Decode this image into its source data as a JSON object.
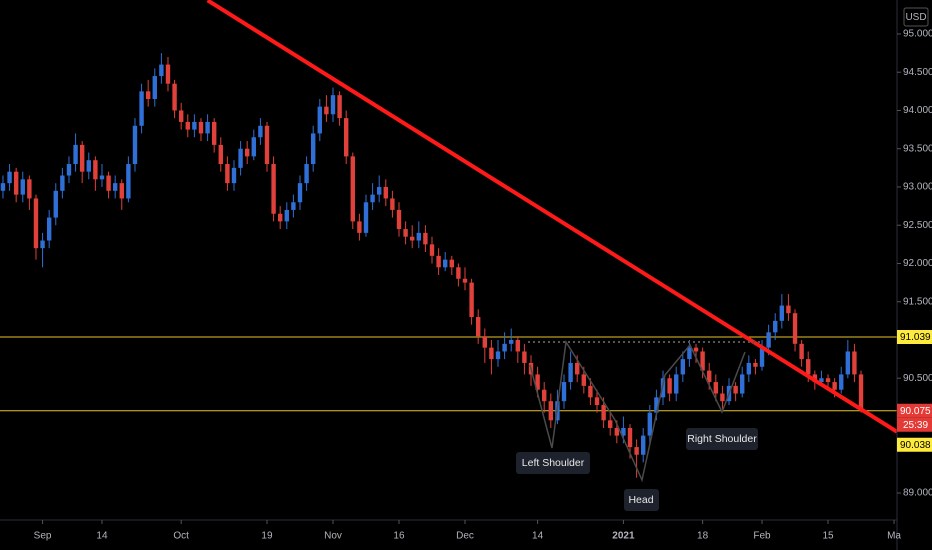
{
  "chart_data": {
    "type": "candlestick",
    "currency": "USD",
    "up_color": "#2f6fd6",
    "down_color": "#e0413a",
    "xlim": [
      -0.45,
      135.45
    ],
    "ylim": [
      88.647,
      95.444
    ],
    "xticks": [
      {
        "value": 6,
        "label": "Sep"
      },
      {
        "value": 15,
        "label": "14"
      },
      {
        "value": 27,
        "label": "Oct"
      },
      {
        "value": 40,
        "label": "19"
      },
      {
        "value": 50,
        "label": "Nov"
      },
      {
        "value": 60,
        "label": "16"
      },
      {
        "value": 70,
        "label": "Dec"
      },
      {
        "value": 81,
        "label": "14"
      },
      {
        "value": 94,
        "label": "2021"
      },
      {
        "value": 106,
        "label": "18"
      },
      {
        "value": 115,
        "label": "Feb"
      },
      {
        "value": 125,
        "label": "15"
      },
      {
        "value": 135,
        "label": "Ma"
      }
    ],
    "yticks": [
      {
        "value": 95,
        "label": "95.000"
      },
      {
        "value": 94.5,
        "label": "94.500"
      },
      {
        "value": 94,
        "label": "94.000"
      },
      {
        "value": 93.5,
        "label": "93.500"
      },
      {
        "value": 93,
        "label": "93.000"
      },
      {
        "value": 92.5,
        "label": "92.500"
      },
      {
        "value": 92,
        "label": "92.000"
      },
      {
        "value": 91.5,
        "label": "91.500"
      },
      {
        "value": 90.5,
        "label": "90.500"
      },
      {
        "value": 89,
        "label": "89.000"
      }
    ],
    "candles": [
      [
        92.95,
        93.15,
        92.85,
        93.05
      ],
      [
        93.05,
        93.3,
        92.95,
        93.2
      ],
      [
        93.2,
        93.25,
        92.8,
        92.9
      ],
      [
        92.9,
        93.2,
        92.8,
        93.1
      ],
      [
        93.1,
        93.15,
        92.7,
        92.85
      ],
      [
        92.85,
        92.9,
        92.05,
        92.2
      ],
      [
        92.2,
        92.4,
        91.95,
        92.3
      ],
      [
        92.3,
        92.7,
        92.2,
        92.6
      ],
      [
        92.6,
        93.05,
        92.5,
        92.95
      ],
      [
        92.95,
        93.25,
        92.85,
        93.15
      ],
      [
        93.15,
        93.4,
        93.05,
        93.3
      ],
      [
        93.3,
        93.7,
        93.2,
        93.55
      ],
      [
        93.55,
        93.6,
        93.05,
        93.2
      ],
      [
        93.2,
        93.45,
        93.1,
        93.35
      ],
      [
        93.35,
        93.4,
        92.95,
        93.1
      ],
      [
        93.1,
        93.3,
        93.0,
        93.15
      ],
      [
        93.15,
        93.2,
        92.85,
        92.95
      ],
      [
        92.95,
        93.15,
        92.85,
        93.05
      ],
      [
        93.05,
        93.1,
        92.7,
        92.85
      ],
      [
        92.85,
        93.4,
        92.8,
        93.3
      ],
      [
        93.3,
        93.9,
        93.2,
        93.8
      ],
      [
        93.8,
        94.35,
        93.7,
        94.25
      ],
      [
        94.25,
        94.4,
        94.05,
        94.15
      ],
      [
        94.15,
        94.55,
        94.05,
        94.45
      ],
      [
        94.45,
        94.75,
        94.35,
        94.6
      ],
      [
        94.6,
        94.7,
        94.25,
        94.35
      ],
      [
        94.35,
        94.4,
        93.9,
        94.0
      ],
      [
        94.0,
        94.1,
        93.75,
        93.85
      ],
      [
        93.85,
        93.95,
        93.65,
        93.75
      ],
      [
        93.75,
        93.95,
        93.65,
        93.85
      ],
      [
        93.85,
        93.9,
        93.6,
        93.7
      ],
      [
        93.7,
        93.95,
        93.6,
        93.85
      ],
      [
        93.85,
        93.9,
        93.45,
        93.55
      ],
      [
        93.55,
        93.65,
        93.2,
        93.3
      ],
      [
        93.3,
        93.4,
        92.95,
        93.05
      ],
      [
        93.05,
        93.35,
        92.95,
        93.25
      ],
      [
        93.25,
        93.6,
        93.15,
        93.5
      ],
      [
        93.5,
        93.6,
        93.3,
        93.4
      ],
      [
        93.4,
        93.75,
        93.35,
        93.65
      ],
      [
        93.65,
        93.9,
        93.55,
        93.8
      ],
      [
        93.8,
        93.85,
        93.2,
        93.3
      ],
      [
        93.3,
        93.4,
        92.55,
        92.65
      ],
      [
        92.65,
        92.75,
        92.45,
        92.55
      ],
      [
        92.55,
        92.8,
        92.45,
        92.7
      ],
      [
        92.7,
        92.9,
        92.6,
        92.8
      ],
      [
        92.8,
        93.15,
        92.7,
        93.05
      ],
      [
        93.05,
        93.4,
        92.95,
        93.3
      ],
      [
        93.3,
        93.8,
        93.2,
        93.7
      ],
      [
        93.7,
        94.15,
        93.6,
        94.05
      ],
      [
        94.05,
        94.2,
        93.85,
        93.95
      ],
      [
        93.95,
        94.3,
        93.85,
        94.2
      ],
      [
        94.2,
        94.25,
        93.8,
        93.9
      ],
      [
        93.9,
        94.0,
        93.3,
        93.4
      ],
      [
        93.4,
        93.45,
        92.45,
        92.55
      ],
      [
        92.55,
        92.65,
        92.3,
        92.4
      ],
      [
        92.4,
        92.9,
        92.35,
        92.8
      ],
      [
        92.8,
        93.05,
        92.7,
        92.9
      ],
      [
        92.9,
        93.15,
        92.8,
        93.0
      ],
      [
        93.0,
        93.1,
        92.75,
        92.85
      ],
      [
        92.85,
        92.95,
        92.6,
        92.7
      ],
      [
        92.7,
        92.8,
        92.35,
        92.45
      ],
      [
        92.45,
        92.55,
        92.25,
        92.35
      ],
      [
        92.35,
        92.5,
        92.2,
        92.3
      ],
      [
        92.3,
        92.55,
        92.2,
        92.4
      ],
      [
        92.4,
        92.5,
        92.15,
        92.25
      ],
      [
        92.25,
        92.35,
        92.0,
        92.1
      ],
      [
        92.1,
        92.2,
        91.85,
        91.95
      ],
      [
        91.95,
        92.15,
        91.9,
        92.05
      ],
      [
        92.05,
        92.1,
        91.85,
        91.95
      ],
      [
        91.95,
        92.0,
        91.7,
        91.8
      ],
      [
        91.8,
        91.95,
        91.65,
        91.75
      ],
      [
        91.75,
        91.8,
        91.2,
        91.3
      ],
      [
        91.3,
        91.4,
        90.95,
        91.05
      ],
      [
        91.05,
        91.15,
        90.7,
        90.9
      ],
      [
        90.9,
        91.0,
        90.55,
        90.75
      ],
      [
        90.75,
        91.0,
        90.65,
        90.85
      ],
      [
        90.85,
        91.1,
        90.75,
        90.95
      ],
      [
        90.95,
        91.15,
        90.85,
        91.0
      ],
      [
        91.0,
        91.05,
        90.7,
        90.85
      ],
      [
        90.85,
        90.95,
        90.55,
        90.7
      ],
      [
        90.7,
        90.8,
        90.4,
        90.55
      ],
      [
        90.55,
        90.65,
        90.25,
        90.35
      ],
      [
        90.35,
        90.45,
        90.05,
        90.2
      ],
      [
        90.2,
        90.3,
        89.85,
        89.95
      ],
      [
        89.95,
        90.35,
        89.9,
        90.2
      ],
      [
        90.2,
        90.55,
        90.1,
        90.45
      ],
      [
        90.45,
        90.85,
        90.35,
        90.7
      ],
      [
        90.7,
        90.8,
        90.45,
        90.55
      ],
      [
        90.55,
        90.65,
        90.3,
        90.4
      ],
      [
        90.4,
        90.5,
        90.15,
        90.25
      ],
      [
        90.25,
        90.35,
        90.05,
        90.15
      ],
      [
        90.15,
        90.25,
        89.85,
        89.95
      ],
      [
        89.95,
        90.05,
        89.75,
        89.85
      ],
      [
        89.85,
        89.95,
        89.65,
        89.75
      ],
      [
        89.75,
        90.0,
        89.65,
        89.85
      ],
      [
        89.85,
        89.9,
        89.45,
        89.6
      ],
      [
        89.6,
        89.7,
        89.2,
        89.5
      ],
      [
        89.5,
        89.85,
        89.4,
        89.75
      ],
      [
        89.75,
        90.15,
        89.65,
        90.05
      ],
      [
        90.05,
        90.35,
        89.95,
        90.25
      ],
      [
        90.25,
        90.6,
        90.15,
        90.5
      ],
      [
        90.5,
        90.55,
        90.2,
        90.3
      ],
      [
        90.3,
        90.65,
        90.2,
        90.55
      ],
      [
        90.55,
        90.85,
        90.45,
        90.75
      ],
      [
        90.75,
        91.0,
        90.65,
        90.9
      ],
      [
        90.9,
        90.95,
        90.7,
        90.85
      ],
      [
        90.85,
        90.9,
        90.5,
        90.6
      ],
      [
        90.6,
        90.7,
        90.35,
        90.45
      ],
      [
        90.45,
        90.55,
        90.2,
        90.3
      ],
      [
        90.3,
        90.4,
        90.1,
        90.2
      ],
      [
        90.2,
        90.5,
        90.15,
        90.4
      ],
      [
        90.4,
        90.45,
        90.2,
        90.3
      ],
      [
        90.3,
        90.65,
        90.25,
        90.55
      ],
      [
        90.55,
        90.8,
        90.45,
        90.7
      ],
      [
        90.7,
        90.75,
        90.55,
        90.65
      ],
      [
        90.65,
        91.0,
        90.6,
        90.9
      ],
      [
        90.9,
        91.2,
        90.8,
        91.1
      ],
      [
        91.1,
        91.35,
        91.0,
        91.25
      ],
      [
        91.25,
        91.6,
        91.15,
        91.45
      ],
      [
        91.45,
        91.6,
        91.25,
        91.35
      ],
      [
        91.35,
        91.4,
        90.85,
        90.95
      ],
      [
        90.95,
        91.0,
        90.65,
        90.75
      ],
      [
        90.75,
        90.85,
        90.45,
        90.55
      ],
      [
        90.55,
        90.6,
        90.35,
        90.45
      ],
      [
        90.45,
        90.6,
        90.4,
        90.5
      ],
      [
        90.5,
        90.55,
        90.35,
        90.45
      ],
      [
        90.45,
        90.5,
        90.25,
        90.35
      ],
      [
        90.35,
        90.65,
        90.3,
        90.55
      ],
      [
        90.55,
        91.0,
        90.5,
        90.85
      ],
      [
        90.85,
        90.95,
        90.45,
        90.55
      ],
      [
        90.55,
        90.6,
        90.05,
        90.08
      ]
    ],
    "trendline": {
      "x": [
        31,
        135.45
      ],
      "y": [
        95.44,
        89.8
      ],
      "color": "#ff1a1a"
    },
    "price_labels": [
      {
        "value": 91.039,
        "color": "#ffeb3b",
        "text_color": "#000000",
        "line": true
      },
      {
        "value": 90.075,
        "color": "#e53935",
        "text_color": "#ffffff",
        "line": true,
        "countdown": "25:39"
      },
      {
        "value": 90.038,
        "color": "#ffeb3b",
        "text_color": "#000000",
        "line": false
      }
    ],
    "level_color": "#e6c229",
    "annotations": [
      "Left Shoulder",
      "Head",
      "Right Shoulder"
    ]
  }
}
